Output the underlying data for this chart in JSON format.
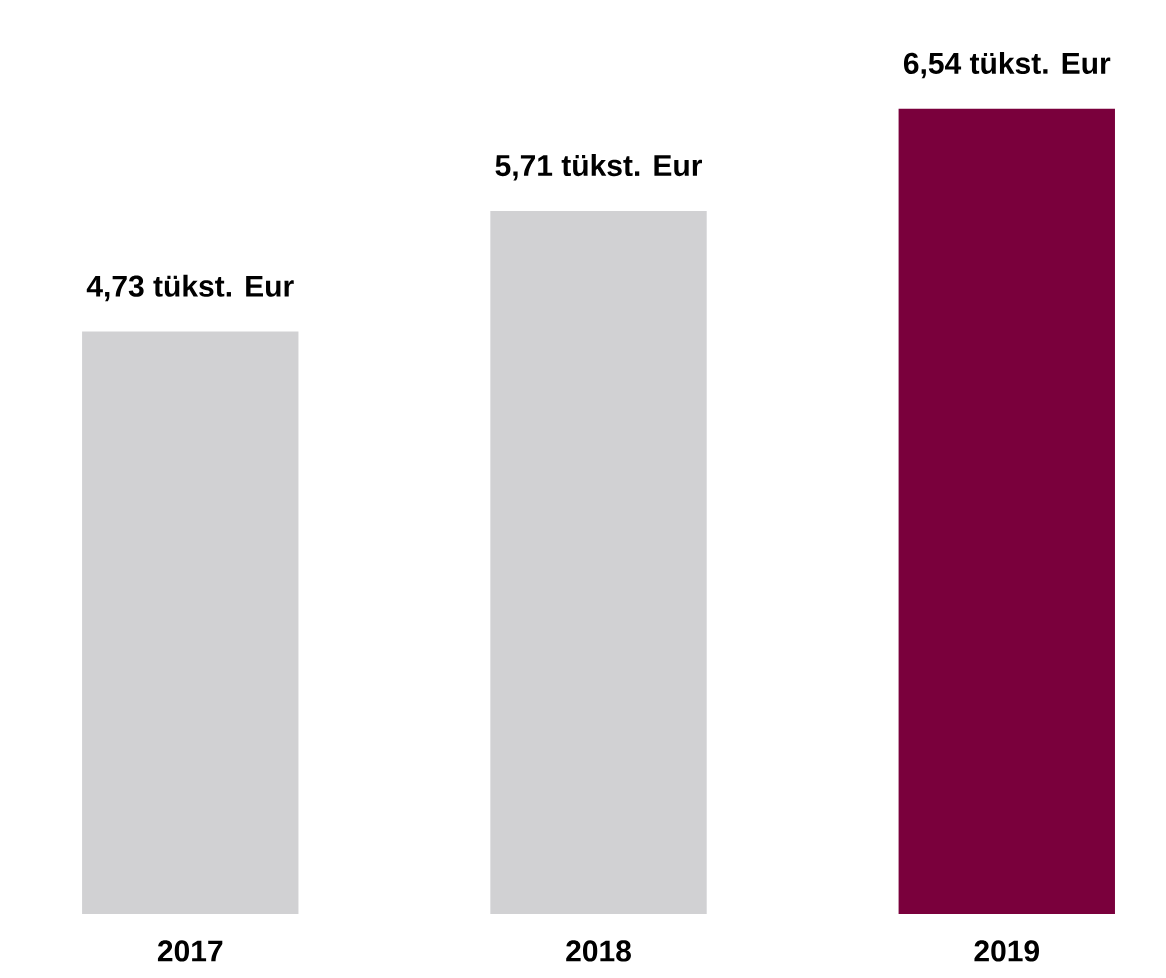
{
  "chart_data": {
    "type": "bar",
    "categories": [
      "2017",
      "2018",
      "2019"
    ],
    "values": [
      4.73,
      5.71,
      6.54
    ],
    "colors": [
      "#d1d1d3",
      "#d1d1d3",
      "#7a003c"
    ],
    "value_labels": [
      "4,73 tükst. Eur",
      "5,71 tükst. Eur",
      "6,54 tükst. Eur"
    ]
  }
}
